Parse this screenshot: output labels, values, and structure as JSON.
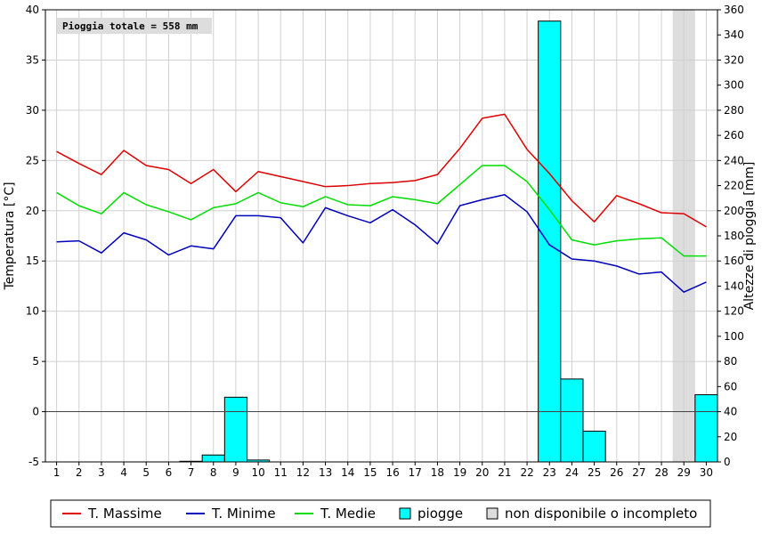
{
  "chart_data": {
    "type": "line",
    "title": "",
    "xlabel": "",
    "ylabel": "Temperatura [°C]",
    "y2label": "Altezze di pioggia [mm]",
    "ylim": [
      -5,
      40
    ],
    "y2lim": [
      0,
      360
    ],
    "x": [
      1,
      2,
      3,
      4,
      5,
      6,
      7,
      8,
      9,
      10,
      11,
      12,
      13,
      14,
      15,
      16,
      17,
      18,
      19,
      20,
      21,
      22,
      23,
      24,
      25,
      26,
      27,
      28,
      29,
      30
    ],
    "grid": true,
    "legend_position": "bottom",
    "annotation": "Pioggia totale = 558 mm",
    "unavailable_days": [
      29
    ],
    "series": [
      {
        "name": "T. Massime",
        "color": "#dd0000",
        "axis": "left",
        "values": [
          25.9,
          24.7,
          23.6,
          26.0,
          24.5,
          24.1,
          22.7,
          24.1,
          21.9,
          23.9,
          23.4,
          22.9,
          22.4,
          22.5,
          22.7,
          22.8,
          23.0,
          23.6,
          26.2,
          29.2,
          29.6,
          26.1,
          23.7,
          21.0,
          18.9,
          21.5,
          20.7,
          19.8,
          19.7,
          18.4
        ]
      },
      {
        "name": "T. Minime",
        "color": "#0000bb",
        "axis": "left",
        "values": [
          16.9,
          17.0,
          15.8,
          17.8,
          17.1,
          15.6,
          16.5,
          16.2,
          19.5,
          19.5,
          19.3,
          16.8,
          20.3,
          19.5,
          18.8,
          20.1,
          18.6,
          16.7,
          20.5,
          21.1,
          21.6,
          19.9,
          16.6,
          15.2,
          15.0,
          14.5,
          13.7,
          13.9,
          11.9,
          12.9
        ]
      },
      {
        "name": "T. Medie",
        "color": "#00dd00",
        "axis": "left",
        "values": [
          21.8,
          20.5,
          19.7,
          21.8,
          20.6,
          19.9,
          19.1,
          20.3,
          20.7,
          21.8,
          20.8,
          20.4,
          21.4,
          20.6,
          20.5,
          21.4,
          21.1,
          20.7,
          22.6,
          24.5,
          24.5,
          22.9,
          20.1,
          17.1,
          16.6,
          17.0,
          17.2,
          17.3,
          15.5,
          15.5
        ]
      },
      {
        "name": "piogge",
        "type": "bar",
        "color": "#00ffff",
        "axis": "right",
        "values": [
          0,
          0,
          0,
          0,
          0,
          0,
          0.5,
          5.5,
          51.5,
          1.5,
          0,
          0,
          0,
          0,
          0,
          0,
          0,
          0,
          0,
          0,
          0,
          0,
          351,
          66,
          24.5,
          0,
          0,
          0,
          0,
          53.5
        ]
      }
    ],
    "legend": [
      {
        "label": "T. Massime",
        "color": "#dd0000",
        "kind": "line"
      },
      {
        "label": "T. Minime",
        "color": "#0000bb",
        "kind": "line"
      },
      {
        "label": "T. Medie",
        "color": "#00dd00",
        "kind": "line"
      },
      {
        "label": "piogge",
        "color": "#00ffff",
        "kind": "box"
      },
      {
        "label": "non disponibile o incompleto",
        "color": "#dddddd",
        "kind": "box"
      }
    ]
  }
}
